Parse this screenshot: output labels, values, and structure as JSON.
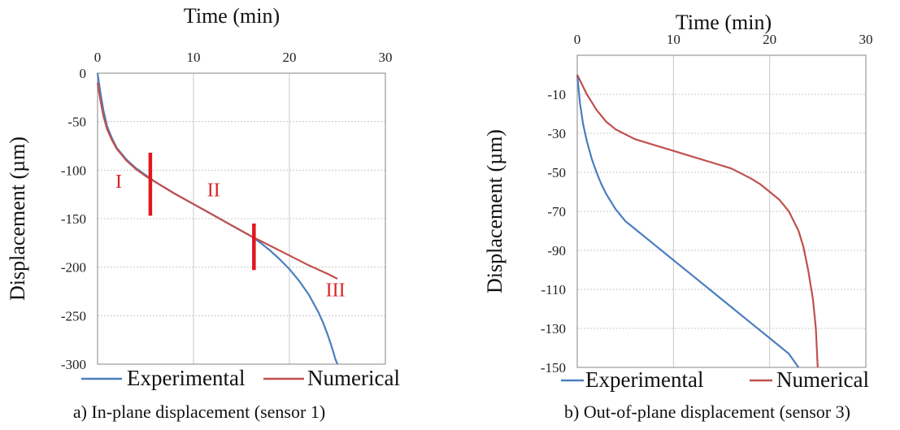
{
  "chart_data": [
    {
      "type": "line",
      "caption": "a) In-plane displacement (sensor 1)",
      "xlabel": "Time (min)",
      "ylabel": "Displacement (µm)",
      "xlim": [
        0,
        30
      ],
      "ylim": [
        -300,
        0
      ],
      "x_ticks": [
        "0",
        "10",
        "20",
        "30"
      ],
      "y_ticks": [
        "0",
        "-50",
        "-100",
        "-150",
        "-200",
        "-250",
        "-300"
      ],
      "x_axis_position": "top",
      "grid": true,
      "legend": {
        "position": "bottom",
        "entries": [
          "Experimental",
          "Numerical"
        ]
      },
      "series": [
        {
          "name": "Experimental",
          "color": "#4a7ebf",
          "x": [
            0,
            0.3,
            0.6,
            1,
            1.5,
            2,
            3,
            4,
            5,
            6,
            8,
            10,
            12,
            14,
            16,
            17,
            18,
            19,
            20,
            21,
            22,
            23,
            23.5,
            24,
            24.5,
            24.8,
            25
          ],
          "y": [
            0,
            -20,
            -38,
            -55,
            -67,
            -77,
            -89,
            -98,
            -105,
            -112,
            -124,
            -135,
            -146,
            -157,
            -168,
            -175,
            -183,
            -192,
            -202,
            -214,
            -228,
            -246,
            -257,
            -270,
            -285,
            -295,
            -300
          ]
        },
        {
          "name": "Numerical",
          "color": "#c0504d",
          "x": [
            0,
            0.3,
            0.6,
            1,
            1.5,
            2,
            3,
            4,
            5,
            6,
            8,
            10,
            12,
            14,
            16,
            18,
            20,
            22,
            24,
            25
          ],
          "y": [
            -10,
            -28,
            -44,
            -58,
            -69,
            -78,
            -90,
            -99,
            -106,
            -112,
            -124,
            -135,
            -146,
            -157,
            -168,
            -178,
            -188,
            -198,
            -207,
            -212
          ]
        }
      ],
      "annotations": [
        {
          "text": "I",
          "x": 2.2,
          "y": -118
        },
        {
          "text": "II",
          "x": 12.1,
          "y": -127
        },
        {
          "text": "III",
          "x": 24.8,
          "y": -230
        }
      ],
      "phase_markers": [
        {
          "x": 5.5,
          "y_from": -82,
          "y_to": -147,
          "color": "#e0171f"
        },
        {
          "x": 16.3,
          "y_from": -155,
          "y_to": -203,
          "color": "#e0171f"
        }
      ]
    },
    {
      "type": "line",
      "caption": "b) Out-of-plane displacement (sensor 3)",
      "xlabel": "Time (min)",
      "ylabel": "Displacement (µm)",
      "xlim": [
        0,
        30
      ],
      "ylim": [
        -150,
        10
      ],
      "x_ticks": [
        "0",
        "10",
        "20",
        "30"
      ],
      "y_ticks": [
        "-10",
        "-30",
        "-50",
        "-70",
        "-90",
        "-110",
        "-130",
        "-150"
      ],
      "x_axis_position": "top",
      "grid": true,
      "legend": {
        "position": "bottom",
        "entries": [
          "Experimental",
          "Numerical"
        ]
      },
      "series": [
        {
          "name": "Experimental",
          "color": "#4a7ebf",
          "x": [
            0,
            0.3,
            0.6,
            1,
            1.5,
            2,
            2.5,
            3,
            4,
            5,
            6,
            8,
            10,
            12,
            14,
            16,
            18,
            20,
            22,
            23
          ],
          "y": [
            0,
            -15,
            -25,
            -34,
            -43,
            -50,
            -56,
            -61,
            -69,
            -75,
            -79,
            -87,
            -95,
            -103,
            -111,
            -119,
            -127,
            -135,
            -143,
            -150
          ]
        },
        {
          "name": "Numerical",
          "color": "#c0504d",
          "x": [
            0,
            0.5,
            1,
            1.5,
            2,
            3,
            4,
            6,
            8,
            10,
            12,
            14,
            16,
            18,
            19,
            20,
            21,
            22,
            23,
            23.5,
            24,
            24.5,
            24.8,
            25
          ],
          "y": [
            0,
            -5,
            -10,
            -14,
            -18,
            -24,
            -28,
            -33,
            -36,
            -39,
            -42,
            -45,
            -48,
            -53,
            -56,
            -60,
            -64,
            -70,
            -80,
            -88,
            -100,
            -115,
            -130,
            -150
          ]
        }
      ]
    }
  ]
}
